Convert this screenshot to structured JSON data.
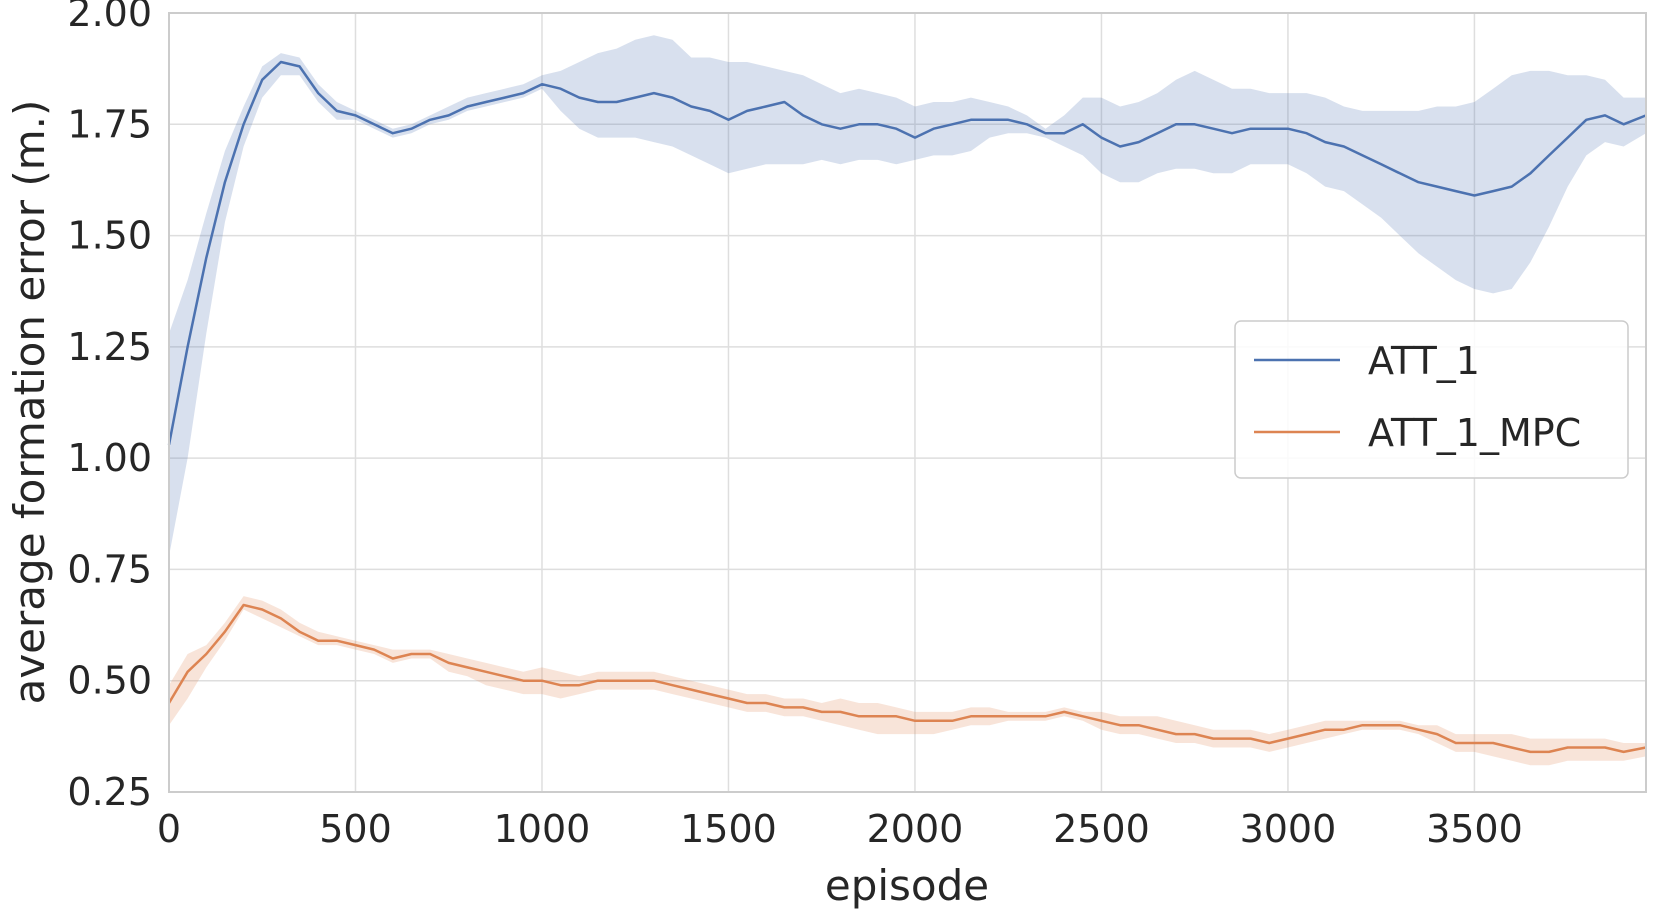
{
  "chart_data": {
    "type": "line",
    "title": "",
    "xlabel": "episode",
    "ylabel": "average formation error (m.)",
    "xlim": [
      0,
      3960
    ],
    "ylim": [
      0.25,
      2.0
    ],
    "xticks": [
      0,
      500,
      1000,
      1500,
      2000,
      2500,
      3000,
      3500
    ],
    "xtick_labels": [
      "0",
      "500",
      "1000",
      "1500",
      "2000",
      "2500",
      "3000",
      "3500"
    ],
    "yticks": [
      0.25,
      0.5,
      0.75,
      1.0,
      1.25,
      1.5,
      1.75,
      2.0
    ],
    "ytick_labels": [
      "0.25",
      "0.50",
      "0.75",
      "1.00",
      "1.25",
      "1.50",
      "1.75",
      "2.00"
    ],
    "grid": true,
    "legend_position": "center-right",
    "series": [
      {
        "name": "ATT_1",
        "color": "#4c72b0",
        "band_color": "#4c72b0",
        "x": [
          0,
          50,
          100,
          150,
          200,
          250,
          300,
          350,
          400,
          450,
          500,
          550,
          600,
          650,
          700,
          750,
          800,
          850,
          900,
          950,
          1000,
          1050,
          1100,
          1150,
          1200,
          1250,
          1300,
          1350,
          1400,
          1450,
          1500,
          1550,
          1600,
          1650,
          1700,
          1750,
          1800,
          1850,
          1900,
          1950,
          2000,
          2050,
          2100,
          2150,
          2200,
          2250,
          2300,
          2350,
          2400,
          2450,
          2500,
          2550,
          2600,
          2650,
          2700,
          2750,
          2800,
          2850,
          2900,
          2950,
          3000,
          3050,
          3100,
          3150,
          3200,
          3250,
          3300,
          3350,
          3400,
          3450,
          3500,
          3550,
          3600,
          3650,
          3700,
          3750,
          3800,
          3850,
          3900,
          3960
        ],
        "y": [
          1.03,
          1.25,
          1.45,
          1.62,
          1.75,
          1.85,
          1.89,
          1.88,
          1.82,
          1.78,
          1.77,
          1.75,
          1.73,
          1.74,
          1.76,
          1.77,
          1.79,
          1.8,
          1.81,
          1.82,
          1.84,
          1.83,
          1.81,
          1.8,
          1.8,
          1.81,
          1.82,
          1.81,
          1.79,
          1.78,
          1.76,
          1.78,
          1.79,
          1.8,
          1.77,
          1.75,
          1.74,
          1.75,
          1.75,
          1.74,
          1.72,
          1.74,
          1.75,
          1.76,
          1.76,
          1.76,
          1.75,
          1.73,
          1.73,
          1.75,
          1.72,
          1.7,
          1.71,
          1.73,
          1.75,
          1.75,
          1.74,
          1.73,
          1.74,
          1.74,
          1.74,
          1.73,
          1.71,
          1.7,
          1.68,
          1.66,
          1.64,
          1.62,
          1.61,
          1.6,
          1.59,
          1.6,
          1.61,
          1.64,
          1.68,
          1.72,
          1.76,
          1.77,
          1.75,
          1.77
        ],
        "lower": [
          0.78,
          1.0,
          1.28,
          1.53,
          1.7,
          1.81,
          1.86,
          1.86,
          1.8,
          1.76,
          1.76,
          1.74,
          1.72,
          1.73,
          1.75,
          1.76,
          1.78,
          1.79,
          1.8,
          1.81,
          1.83,
          1.78,
          1.74,
          1.72,
          1.72,
          1.72,
          1.71,
          1.7,
          1.68,
          1.66,
          1.64,
          1.65,
          1.66,
          1.66,
          1.66,
          1.67,
          1.66,
          1.67,
          1.67,
          1.66,
          1.67,
          1.68,
          1.68,
          1.69,
          1.72,
          1.73,
          1.73,
          1.72,
          1.7,
          1.68,
          1.64,
          1.62,
          1.62,
          1.64,
          1.65,
          1.65,
          1.64,
          1.64,
          1.66,
          1.66,
          1.66,
          1.64,
          1.61,
          1.6,
          1.57,
          1.54,
          1.5,
          1.46,
          1.43,
          1.4,
          1.38,
          1.37,
          1.38,
          1.44,
          1.52,
          1.61,
          1.68,
          1.71,
          1.7,
          1.73
        ],
        "upper": [
          1.28,
          1.4,
          1.55,
          1.69,
          1.79,
          1.88,
          1.91,
          1.9,
          1.84,
          1.8,
          1.78,
          1.76,
          1.74,
          1.75,
          1.77,
          1.79,
          1.81,
          1.82,
          1.83,
          1.84,
          1.86,
          1.87,
          1.89,
          1.91,
          1.92,
          1.94,
          1.95,
          1.94,
          1.9,
          1.9,
          1.89,
          1.89,
          1.88,
          1.87,
          1.86,
          1.84,
          1.82,
          1.83,
          1.82,
          1.81,
          1.79,
          1.8,
          1.8,
          1.81,
          1.8,
          1.79,
          1.77,
          1.74,
          1.77,
          1.81,
          1.81,
          1.79,
          1.8,
          1.82,
          1.85,
          1.87,
          1.85,
          1.83,
          1.83,
          1.82,
          1.82,
          1.82,
          1.81,
          1.79,
          1.78,
          1.78,
          1.78,
          1.78,
          1.79,
          1.79,
          1.8,
          1.83,
          1.86,
          1.87,
          1.87,
          1.86,
          1.86,
          1.85,
          1.81,
          1.81
        ]
      },
      {
        "name": "ATT_1_MPC",
        "color": "#dd8452",
        "band_color": "#dd8452",
        "x": [
          0,
          50,
          100,
          150,
          200,
          250,
          300,
          350,
          400,
          450,
          500,
          550,
          600,
          650,
          700,
          750,
          800,
          850,
          900,
          950,
          1000,
          1050,
          1100,
          1150,
          1200,
          1250,
          1300,
          1350,
          1400,
          1450,
          1500,
          1550,
          1600,
          1650,
          1700,
          1750,
          1800,
          1850,
          1900,
          1950,
          2000,
          2050,
          2100,
          2150,
          2200,
          2250,
          2300,
          2350,
          2400,
          2450,
          2500,
          2550,
          2600,
          2650,
          2700,
          2750,
          2800,
          2850,
          2900,
          2950,
          3000,
          3050,
          3100,
          3150,
          3200,
          3250,
          3300,
          3350,
          3400,
          3450,
          3500,
          3550,
          3600,
          3650,
          3700,
          3750,
          3800,
          3850,
          3900,
          3960
        ],
        "y": [
          0.45,
          0.52,
          0.56,
          0.61,
          0.67,
          0.66,
          0.64,
          0.61,
          0.59,
          0.59,
          0.58,
          0.57,
          0.55,
          0.56,
          0.56,
          0.54,
          0.53,
          0.52,
          0.51,
          0.5,
          0.5,
          0.49,
          0.49,
          0.5,
          0.5,
          0.5,
          0.5,
          0.49,
          0.48,
          0.47,
          0.46,
          0.45,
          0.45,
          0.44,
          0.44,
          0.43,
          0.43,
          0.42,
          0.42,
          0.42,
          0.41,
          0.41,
          0.41,
          0.42,
          0.42,
          0.42,
          0.42,
          0.42,
          0.43,
          0.42,
          0.41,
          0.4,
          0.4,
          0.39,
          0.38,
          0.38,
          0.37,
          0.37,
          0.37,
          0.36,
          0.37,
          0.38,
          0.39,
          0.39,
          0.4,
          0.4,
          0.4,
          0.39,
          0.38,
          0.36,
          0.36,
          0.36,
          0.35,
          0.34,
          0.34,
          0.35,
          0.35,
          0.35,
          0.34,
          0.35
        ],
        "lower": [
          0.4,
          0.46,
          0.53,
          0.59,
          0.66,
          0.64,
          0.62,
          0.6,
          0.58,
          0.58,
          0.57,
          0.56,
          0.54,
          0.55,
          0.55,
          0.52,
          0.51,
          0.49,
          0.48,
          0.47,
          0.47,
          0.46,
          0.47,
          0.48,
          0.48,
          0.48,
          0.48,
          0.47,
          0.46,
          0.45,
          0.44,
          0.43,
          0.43,
          0.42,
          0.42,
          0.41,
          0.4,
          0.39,
          0.38,
          0.38,
          0.38,
          0.38,
          0.39,
          0.4,
          0.4,
          0.41,
          0.41,
          0.41,
          0.42,
          0.41,
          0.39,
          0.38,
          0.38,
          0.37,
          0.36,
          0.36,
          0.35,
          0.35,
          0.35,
          0.34,
          0.35,
          0.36,
          0.37,
          0.38,
          0.39,
          0.39,
          0.39,
          0.38,
          0.36,
          0.34,
          0.34,
          0.33,
          0.32,
          0.31,
          0.31,
          0.32,
          0.32,
          0.32,
          0.32,
          0.33
        ],
        "upper": [
          0.49,
          0.56,
          0.58,
          0.63,
          0.69,
          0.68,
          0.66,
          0.63,
          0.61,
          0.6,
          0.59,
          0.58,
          0.57,
          0.57,
          0.57,
          0.56,
          0.55,
          0.54,
          0.53,
          0.52,
          0.53,
          0.52,
          0.51,
          0.52,
          0.52,
          0.52,
          0.52,
          0.51,
          0.5,
          0.49,
          0.48,
          0.47,
          0.47,
          0.46,
          0.46,
          0.45,
          0.46,
          0.45,
          0.45,
          0.44,
          0.43,
          0.43,
          0.43,
          0.44,
          0.44,
          0.43,
          0.43,
          0.43,
          0.44,
          0.43,
          0.43,
          0.42,
          0.42,
          0.42,
          0.41,
          0.4,
          0.39,
          0.39,
          0.39,
          0.38,
          0.39,
          0.4,
          0.41,
          0.41,
          0.41,
          0.41,
          0.41,
          0.4,
          0.4,
          0.38,
          0.38,
          0.38,
          0.38,
          0.37,
          0.37,
          0.37,
          0.37,
          0.37,
          0.36,
          0.36
        ]
      }
    ]
  }
}
